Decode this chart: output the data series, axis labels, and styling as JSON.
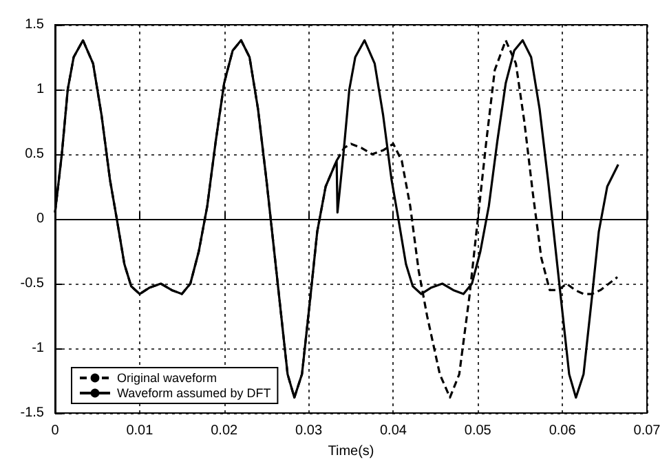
{
  "chart_data": {
    "type": "line",
    "xlabel": "Time(s)",
    "xlim": [
      0,
      0.07
    ],
    "xticks": [
      0,
      0.01,
      0.02,
      0.03,
      0.04,
      0.05,
      0.06,
      0.07
    ],
    "ylim": [
      -1.5,
      1.5
    ],
    "yticks": [
      -1.5,
      -1,
      -0.5,
      0,
      0.5,
      1,
      1.5
    ],
    "grid": true,
    "legend": "bottom left",
    "marker": "none",
    "series": [
      {
        "name": "Original waveform",
        "color": "#000000",
        "line_style": "dashed",
        "x": [
          0,
          0.0008,
          0.0015,
          0.0022,
          0.0033,
          0.0045,
          0.0055,
          0.0065,
          0.0073,
          0.0082,
          0.009,
          0.01,
          0.0112,
          0.0125,
          0.0138,
          0.015,
          0.016,
          0.017,
          0.018,
          0.019,
          0.02,
          0.021,
          0.022,
          0.023,
          0.024,
          0.025,
          0.0255,
          0.0265,
          0.0275,
          0.0283,
          0.0292,
          0.0302,
          0.031,
          0.032,
          0.0333,
          0.0342,
          0.035,
          0.0362,
          0.0375,
          0.0388,
          0.04,
          0.041,
          0.042,
          0.043,
          0.044,
          0.0455,
          0.0467,
          0.0478,
          0.049,
          0.05,
          0.051,
          0.052,
          0.0533,
          0.0545,
          0.0555,
          0.0565,
          0.0575,
          0.0585,
          0.0595,
          0.0605,
          0.0615,
          0.0625,
          0.0635,
          0.0645,
          0.0655,
          0.0665
        ],
        "values": [
          0.05,
          0.5,
          1.0,
          1.25,
          1.38,
          1.2,
          0.8,
          0.3,
          0,
          -0.35,
          -0.52,
          -0.58,
          -0.53,
          -0.5,
          -0.55,
          -0.58,
          -0.5,
          -0.25,
          0.1,
          0.6,
          1.05,
          1.3,
          1.38,
          1.25,
          0.85,
          0.3,
          0,
          -0.6,
          -1.2,
          -1.38,
          -1.2,
          -0.6,
          -0.1,
          0.25,
          0.45,
          0.55,
          0.58,
          0.55,
          0.5,
          0.53,
          0.58,
          0.45,
          0.1,
          -0.4,
          -0.75,
          -1.2,
          -1.38,
          -1.2,
          -0.6,
          0,
          0.6,
          1.15,
          1.38,
          1.2,
          0.75,
          0.2,
          -0.3,
          -0.55,
          -0.55,
          -0.5,
          -0.55,
          -0.58,
          -0.58,
          -0.55,
          -0.5,
          -0.45
        ]
      },
      {
        "name": "Waveform assumed by DFT",
        "color": "#000000",
        "line_style": "solid",
        "x": [
          0,
          0.0008,
          0.0015,
          0.0022,
          0.0033,
          0.0045,
          0.0055,
          0.0065,
          0.0073,
          0.0082,
          0.009,
          0.01,
          0.0112,
          0.0125,
          0.0138,
          0.015,
          0.016,
          0.017,
          0.018,
          0.019,
          0.02,
          0.021,
          0.022,
          0.023,
          0.024,
          0.025,
          0.0255,
          0.0265,
          0.0275,
          0.0283,
          0.0292,
          0.0302,
          0.031,
          0.032,
          0.0333,
          0.0334,
          0.0341,
          0.0348,
          0.0355,
          0.0366,
          0.0378,
          0.0388,
          0.0398,
          0.0406,
          0.0415,
          0.0423,
          0.0433,
          0.0445,
          0.0458,
          0.0471,
          0.0483,
          0.0493,
          0.0503,
          0.0513,
          0.0523,
          0.0533,
          0.0543,
          0.0553,
          0.0563,
          0.0573,
          0.0583,
          0.0588,
          0.0598,
          0.0608,
          0.0616,
          0.0625,
          0.0635,
          0.0643,
          0.0653,
          0.0666
        ],
        "values": [
          0.05,
          0.5,
          1.0,
          1.25,
          1.38,
          1.2,
          0.8,
          0.3,
          0,
          -0.35,
          -0.52,
          -0.58,
          -0.53,
          -0.5,
          -0.55,
          -0.58,
          -0.5,
          -0.25,
          0.1,
          0.6,
          1.05,
          1.3,
          1.38,
          1.25,
          0.85,
          0.3,
          0,
          -0.6,
          -1.2,
          -1.38,
          -1.2,
          -0.6,
          -0.1,
          0.25,
          0.45,
          0.05,
          0.5,
          1.0,
          1.25,
          1.38,
          1.2,
          0.8,
          0.3,
          0,
          -0.35,
          -0.52,
          -0.58,
          -0.53,
          -0.5,
          -0.55,
          -0.58,
          -0.5,
          -0.25,
          0.1,
          0.6,
          1.05,
          1.3,
          1.38,
          1.25,
          0.85,
          0.3,
          0,
          -0.6,
          -1.2,
          -1.38,
          -1.2,
          -0.6,
          -0.1,
          0.25,
          0.42
        ]
      }
    ]
  }
}
